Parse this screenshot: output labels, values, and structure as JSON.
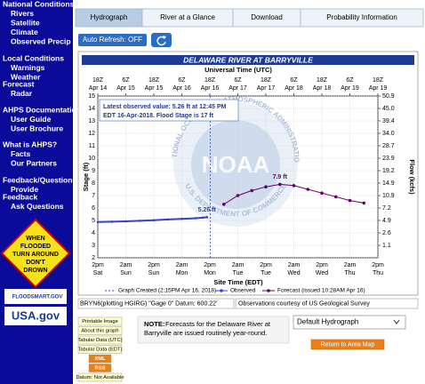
{
  "sidebar": {
    "sections": [
      {
        "heading": "National Conditions",
        "links": [
          "Rivers",
          "Satellite",
          "Climate",
          "Observed Precip"
        ]
      },
      {
        "heading": "Local Conditions",
        "links": [
          "Warnings",
          "Weather"
        ]
      },
      {
        "heading": "Forecast",
        "links": [
          "Radar"
        ]
      },
      {
        "heading": "AHPS Documentation",
        "links": [
          "User Guide",
          "User Brochure"
        ]
      },
      {
        "heading": "What is AHPS?",
        "links": [
          "Facts",
          "Our Partners"
        ]
      },
      {
        "heading": "Feedback/Questions",
        "links": [
          "Provide"
        ]
      },
      {
        "heading": "Feedback",
        "links": [
          "Ask Questions"
        ]
      }
    ]
  },
  "flood_sign": [
    "WHEN",
    "FLOODED",
    "TURN AROUND",
    "DON'T",
    "DROWN"
  ],
  "logos": [
    "FLOODSMART.GOV",
    "USA.gov"
  ],
  "tabs": [
    "Hydrograph",
    "River at a Glance",
    "Download",
    "Probability Information"
  ],
  "auto_refresh": "Auto Refresh: OFF",
  "chart_data": {
    "type": "line",
    "title": "DELAWARE RIVER AT BARRYVILLE",
    "top_axis_label": "Universal Time (UTC)",
    "xlabel": "Site Time (EDT)",
    "ylabel": "Stage (ft)",
    "y2label": "Flow (kcfs)",
    "watermark": "NOAA",
    "watermark_ring": [
      "NATIONAL OCEANIC AND ATMOSPHERIC ADMINISTRATION",
      "U.S. DEPARTMENT OF COMMERCE"
    ],
    "annotation": [
      "Latest observed value: 5.26 ft at 12:45 PM",
      "EDT 16-Apr-2018. Flood Stage is 17 ft"
    ],
    "created": {
      "label": "Graph Created (2:15PM Apr 16, 2018)",
      "x": "2018-04-16T14:15"
    },
    "xlim": [
      "2018-04-14T14:00",
      "2018-04-19T14:00"
    ],
    "xticks": [
      {
        "value": "2018-04-14T14:00",
        "label": [
          "2pm",
          "Sat"
        ]
      },
      {
        "value": "2018-04-15T02:00",
        "label": [
          "2am",
          "Sun"
        ]
      },
      {
        "value": "2018-04-15T14:00",
        "label": [
          "2pm",
          "Sun"
        ]
      },
      {
        "value": "2018-04-16T02:00",
        "label": [
          "2am",
          "Mon"
        ]
      },
      {
        "value": "2018-04-16T14:00",
        "label": [
          "2pm",
          "Mon"
        ]
      },
      {
        "value": "2018-04-17T02:00",
        "label": [
          "2am",
          "Tue"
        ]
      },
      {
        "value": "2018-04-17T14:00",
        "label": [
          "2pm",
          "Tue"
        ]
      },
      {
        "value": "2018-04-18T02:00",
        "label": [
          "2am",
          "Wed"
        ]
      },
      {
        "value": "2018-04-18T14:00",
        "label": [
          "2pm",
          "Wed"
        ]
      },
      {
        "value": "2018-04-19T02:00",
        "label": [
          "2am",
          "Thu"
        ]
      },
      {
        "value": "2018-04-19T14:00",
        "label": [
          "2pm",
          "Thu"
        ]
      }
    ],
    "x2ticks": [
      {
        "value": "2018-04-14T14:00",
        "label": [
          "18Z",
          "Apr 14"
        ]
      },
      {
        "value": "2018-04-15T02:00",
        "label": [
          "6Z",
          "Apr 15"
        ]
      },
      {
        "value": "2018-04-15T14:00",
        "label": [
          "18Z",
          "Apr 15"
        ]
      },
      {
        "value": "2018-04-16T02:00",
        "label": [
          "6Z",
          "Apr 16"
        ]
      },
      {
        "value": "2018-04-16T14:00",
        "label": [
          "18Z",
          "Apr 16"
        ]
      },
      {
        "value": "2018-04-17T02:00",
        "label": [
          "6Z",
          "Apr 17"
        ]
      },
      {
        "value": "2018-04-17T14:00",
        "label": [
          "18Z",
          "Apr 17"
        ]
      },
      {
        "value": "2018-04-18T02:00",
        "label": [
          "6Z",
          "Apr 18"
        ]
      },
      {
        "value": "2018-04-18T14:00",
        "label": [
          "18Z",
          "Apr 18"
        ]
      },
      {
        "value": "2018-04-19T02:00",
        "label": [
          "6Z",
          "Apr 19"
        ]
      },
      {
        "value": "2018-04-19T14:00",
        "label": [
          "18Z",
          "Apr 19"
        ]
      }
    ],
    "ylim": [
      2,
      15
    ],
    "yticks": [
      2,
      3,
      4,
      5,
      6,
      7,
      8,
      9,
      10,
      11,
      12,
      13,
      14,
      15
    ],
    "y2ticks": [
      50.9,
      {
        "value": 45,
        "label": "45.0"
      },
      39.4,
      {
        "value": 34,
        "label": "34.0"
      },
      28.7,
      23.9,
      19.2,
      14.9,
      10.9,
      7.2,
      4.9,
      2.6,
      1.1
    ],
    "grid": true,
    "series": [
      {
        "name": "Observed",
        "color": "#3344cc",
        "x": [
          "2018-04-14T14:00",
          "2018-04-14T20:00",
          "2018-04-15T02:00",
          "2018-04-15T08:00",
          "2018-04-15T14:00",
          "2018-04-15T20:00",
          "2018-04-16T02:00",
          "2018-04-16T08:00",
          "2018-04-16T11:00",
          "2018-04-16T12:45"
        ],
        "values": [
          4.88,
          4.9,
          4.93,
          4.97,
          5.02,
          5.08,
          5.13,
          5.18,
          5.22,
          5.26
        ],
        "value_labels": [
          null,
          null,
          null,
          null,
          null,
          null,
          null,
          null,
          null,
          "5.26 ft"
        ]
      },
      {
        "name": "Forecast (issued 10:28AM Apr 16)",
        "color": "#660066",
        "x": [
          "2018-04-16T20:00",
          "2018-04-17T02:00",
          "2018-04-17T08:00",
          "2018-04-17T14:00",
          "2018-04-17T20:00",
          "2018-04-18T02:00",
          "2018-04-18T08:00",
          "2018-04-18T14:00",
          "2018-04-18T20:00",
          "2018-04-19T02:00",
          "2018-04-19T08:00"
        ],
        "values": [
          6.3,
          7.0,
          7.4,
          7.7,
          7.9,
          7.8,
          7.5,
          7.2,
          6.9,
          6.6,
          6.4
        ],
        "value_labels": [
          null,
          null,
          null,
          null,
          "7.9 ft",
          null,
          null,
          null,
          null,
          null,
          null
        ]
      }
    ]
  },
  "footer": {
    "gage_info": "BRYN6(plotting HGIRG) \"Gage 0\" Datum: 600.22'",
    "courtesy": "Observations courtesy of US Geological Survey"
  },
  "buttons": [
    "Printable Image",
    "About this graph",
    "Tabular Data (UTC)",
    "Tabular Data (EDT)",
    "XML",
    "RSS",
    "Datum: Not Available"
  ],
  "note": {
    "label": "NOTE:",
    "lines": [
      "Forecasts for the Delaware River at",
      "Barryville are issued routinely year-round."
    ]
  },
  "dropdown": "Default Hydrograph",
  "return_button": "Return to Area Map"
}
